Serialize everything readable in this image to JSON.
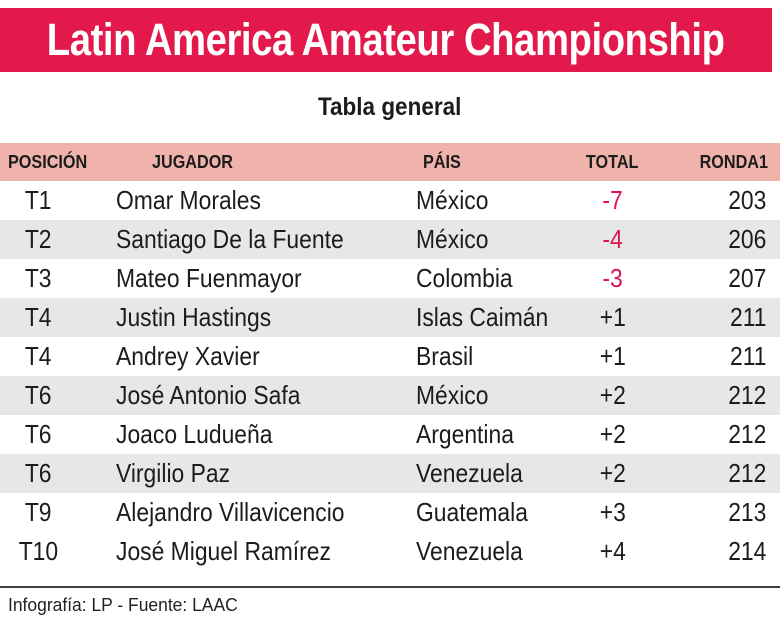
{
  "banner": {
    "title": "Latin America Amateur Championship"
  },
  "subtitle": "Tabla general",
  "table": {
    "columns": [
      "POSICIÓN",
      "JUGADOR",
      "PÁIS",
      "TOTAL",
      "RONDA1"
    ],
    "rows": [
      {
        "posicion": "T1",
        "jugador": "Omar Morales",
        "pais": "México",
        "total": "-7",
        "ronda1": "203"
      },
      {
        "posicion": "T2",
        "jugador": "Santiago De la Fuente",
        "pais": "México",
        "total": "-4",
        "ronda1": "206"
      },
      {
        "posicion": "T3",
        "jugador": "Mateo Fuenmayor",
        "pais": "Colombia",
        "total": "-3",
        "ronda1": "207"
      },
      {
        "posicion": "T4",
        "jugador": "Justin Hastings",
        "pais": "Islas Caimán",
        "total": "+1",
        "ronda1": "211"
      },
      {
        "posicion": "T4",
        "jugador": "Andrey Xavier",
        "pais": "Brasil",
        "total": "+1",
        "ronda1": "211"
      },
      {
        "posicion": "T6",
        "jugador": "José Antonio Safa",
        "pais": "México",
        "total": "+2",
        "ronda1": "212"
      },
      {
        "posicion": "T6",
        "jugador": "Joaco Ludueña",
        "pais": "Argentina",
        "total": "+2",
        "ronda1": "212"
      },
      {
        "posicion": "T6",
        "jugador": "Virgilio Paz",
        "pais": "Venezuela",
        "total": "+2",
        "ronda1": "212"
      },
      {
        "posicion": "T9",
        "jugador": "Alejandro Villavicencio",
        "pais": "Guatemala",
        "total": "+3",
        "ronda1": "213"
      },
      {
        "posicion": "T10",
        "jugador": "José Miguel Ramírez",
        "pais": "Venezuela",
        "total": "+4",
        "ronda1": "214"
      }
    ],
    "shaded_rows": [
      1,
      3,
      5,
      7
    ]
  },
  "footer": {
    "credit": "Infografía: LP - Fuente: LAAC"
  },
  "colors": {
    "banner_bg": "#E4194B",
    "header_bg": "#F0B3AB",
    "stripe": "#E7E7E7",
    "negative_total": "#D9164E",
    "text": "#1C1C1C"
  },
  "chart_data": {
    "type": "table",
    "title": "Latin America Amateur Championship",
    "subtitle": "Tabla general",
    "columns": [
      "POSICIÓN",
      "JUGADOR",
      "PÁIS",
      "TOTAL",
      "RONDA1"
    ],
    "rows": [
      [
        "T1",
        "Omar Morales",
        "México",
        "-7",
        "203"
      ],
      [
        "T2",
        "Santiago De la Fuente",
        "México",
        "-4",
        "206"
      ],
      [
        "T3",
        "Mateo Fuenmayor",
        "Colombia",
        "-3",
        "207"
      ],
      [
        "T4",
        "Justin Hastings",
        "Islas Caimán",
        "+1",
        "211"
      ],
      [
        "T4",
        "Andrey Xavier",
        "Brasil",
        "+1",
        "211"
      ],
      [
        "T6",
        "José Antonio Safa",
        "México",
        "+2",
        "212"
      ],
      [
        "T6",
        "Joaco Ludueña",
        "Argentina",
        "+2",
        "212"
      ],
      [
        "T6",
        "Virgilio Paz",
        "Venezuela",
        "+2",
        "212"
      ],
      [
        "T9",
        "Alejandro Villavicencio",
        "Guatemala",
        "+3",
        "213"
      ],
      [
        "T10",
        "José Miguel Ramírez",
        "Venezuela",
        "+4",
        "214"
      ]
    ],
    "source": "Infografía: LP - Fuente: LAAC"
  }
}
